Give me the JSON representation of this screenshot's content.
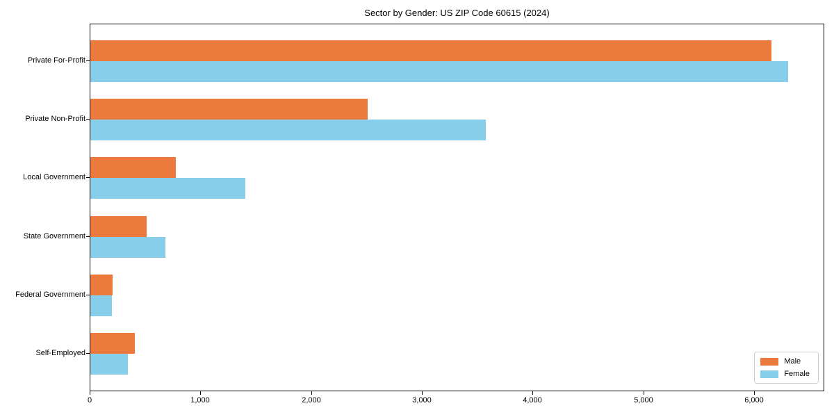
{
  "chart_data": {
    "type": "bar",
    "orientation": "horizontal",
    "title": "Sector by Gender: US ZIP Code 60615 (2024)",
    "categories": [
      "Private For-Profit",
      "Private Non-Profit",
      "Local Government",
      "State Government",
      "Federal Government",
      "Self-Employed"
    ],
    "series": [
      {
        "name": "Male",
        "color": "#EC7A3D",
        "values": [
          6150,
          2505,
          770,
          510,
          200,
          400
        ]
      },
      {
        "name": "Female",
        "color": "#87CEEB",
        "values": [
          6300,
          3570,
          1400,
          680,
          195,
          340
        ]
      }
    ],
    "xlabel": "",
    "ylabel": "",
    "xlim": [
      0,
      6614
    ],
    "x_ticks": [
      0,
      1000,
      2000,
      3000,
      4000,
      5000,
      6000
    ],
    "x_tick_labels": [
      "0",
      "1,000",
      "2,000",
      "3,000",
      "4,000",
      "5,000",
      "6,000"
    ],
    "grid": false,
    "legend": {
      "position": "lower right",
      "entries": [
        {
          "label": "Male",
          "color": "#EC7A3D"
        },
        {
          "label": "Female",
          "color": "#87CEEB"
        }
      ]
    },
    "background_color": "#ffffff",
    "axis_color": "#000000"
  }
}
